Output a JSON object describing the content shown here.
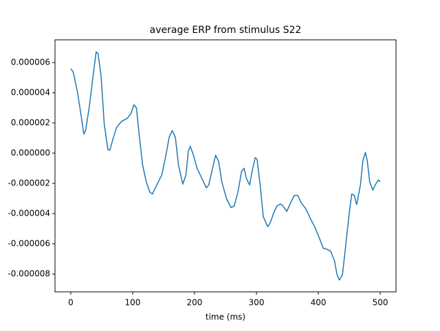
{
  "chart_data": {
    "type": "line",
    "title": "average ERP from stimulus S22",
    "xlabel": "time (ms)",
    "x": [
      0,
      4,
      11,
      17,
      21,
      24,
      30,
      36,
      41,
      44,
      49,
      54,
      60,
      63,
      69,
      74,
      82,
      91,
      97,
      102,
      106,
      111,
      116,
      122,
      128,
      132,
      139,
      147,
      153,
      159,
      164,
      169,
      174,
      181,
      186,
      190,
      193,
      198,
      204,
      211,
      219,
      223,
      229,
      234,
      239,
      244,
      252,
      259,
      264,
      270,
      276,
      280,
      284,
      289,
      293,
      298,
      301,
      306,
      311,
      318,
      322,
      328,
      333,
      339,
      343,
      349,
      354,
      361,
      367,
      372,
      380,
      388,
      394,
      401,
      408,
      414,
      420,
      426,
      430,
      434,
      439,
      444,
      450,
      454,
      458,
      462,
      468,
      472,
      476,
      479,
      483,
      488,
      492,
      497,
      500
    ],
    "series": [
      {
        "name": "ERP",
        "color": "#1f77b4",
        "values": [
          5.59e-06,
          5.36e-06,
          4e-06,
          2.4e-06,
          1.27e-06,
          1.5e-06,
          3.1e-06,
          5.1e-06,
          6.7e-06,
          6.6e-06,
          5.1e-06,
          1.95e-06,
          2.3e-07,
          2e-07,
          1.05e-06,
          1.7e-06,
          2.1e-06,
          2.3e-06,
          2.6e-06,
          3.2e-06,
          3e-06,
          1.05e-06,
          -7.7e-07,
          -1.9e-06,
          -2.6e-06,
          -2.7e-06,
          -2.1e-06,
          -1.45e-06,
          -3e-07,
          1.05e-06,
          1.5e-06,
          1.05e-06,
          -7.7e-07,
          -2.05e-06,
          -1.45e-06,
          1.4e-07,
          4.5e-07,
          -1e-07,
          -1e-06,
          -1.6e-06,
          -2.3e-06,
          -2.1e-06,
          -1e-06,
          -1.4e-07,
          -5.5e-07,
          -1.9e-06,
          -3.05e-06,
          -3.6e-06,
          -3.5e-06,
          -2.6e-06,
          -1.2e-06,
          -1e-06,
          -1.7e-06,
          -2.1e-06,
          -1.2e-06,
          -3e-07,
          -4e-07,
          -2.1e-06,
          -4.2e-06,
          -4.86e-06,
          -4.64e-06,
          -3.95e-06,
          -3.5e-06,
          -3.36e-06,
          -3.5e-06,
          -3.86e-06,
          -3.4e-06,
          -2.8e-06,
          -2.8e-06,
          -3.27e-06,
          -3.7e-06,
          -4.4e-06,
          -4.86e-06,
          -5.55e-06,
          -6.3e-06,
          -6.36e-06,
          -6.5e-06,
          -7.1e-06,
          -8e-06,
          -8.4e-06,
          -8.05e-06,
          -6.2e-06,
          -3.95e-06,
          -2.7e-06,
          -2.8e-06,
          -3.4e-06,
          -2.1e-06,
          -5e-07,
          5e-08,
          -5e-07,
          -1.9e-06,
          -2.45e-06,
          -2.1e-06,
          -1.77e-06,
          -1.9e-06
        ]
      }
    ],
    "xlim": [
      -25.5,
      525.5
    ],
    "ylim": [
      -9.18e-06,
      7.5e-06
    ],
    "xticks": [
      0,
      100,
      200,
      300,
      400,
      500
    ],
    "yticks": [
      {
        "value": 6e-06,
        "label": "0.000006"
      },
      {
        "value": 4e-06,
        "label": "0.000004"
      },
      {
        "value": 2e-06,
        "label": "0.000002"
      },
      {
        "value": 0,
        "label": "0.000000"
      },
      {
        "value": -2e-06,
        "label": "-0.000002"
      },
      {
        "value": -4e-06,
        "label": "-0.000004"
      },
      {
        "value": -6e-06,
        "label": "-0.000006"
      },
      {
        "value": -8e-06,
        "label": "-0.000008"
      }
    ]
  }
}
